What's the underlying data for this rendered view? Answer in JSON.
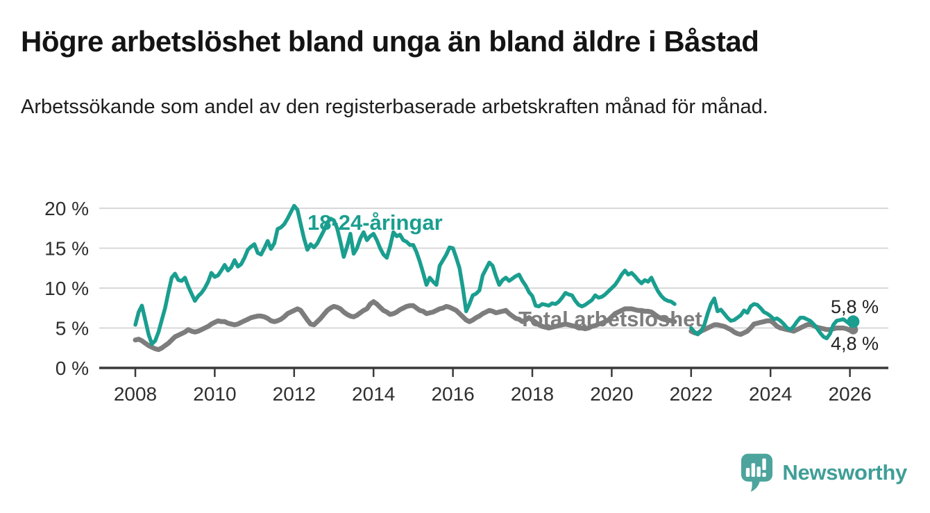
{
  "header": {
    "title": "Högre arbetslöshet bland unga än bland äldre i Båstad",
    "subtitle": "Arbetssökande som andel av den registerbaserade arbetskraften månad för månad."
  },
  "chart_data": {
    "type": "line",
    "title": "Högre arbetslöshet bland unga än bland äldre i Båstad",
    "subtitle": "Arbetssökande som andel av den registerbaserade arbetskraften månad för månad.",
    "legend_position": "inline-labels-on-chart",
    "x": {
      "unit": "month",
      "start": "2008-01",
      "end": "2026-02",
      "tick_years": [
        2008,
        2010,
        2012,
        2014,
        2016,
        2018,
        2020,
        2022,
        2024,
        2026
      ],
      "tick_labels": [
        "2008",
        "2010",
        "2012",
        "2014",
        "2016",
        "2018",
        "2020",
        "2022",
        "2024",
        "2026"
      ]
    },
    "y": {
      "unit": "percent",
      "lim": [
        0,
        21.5
      ],
      "gridlines": true,
      "tick_values": [
        0,
        5,
        10,
        15,
        20
      ],
      "tick_labels": [
        "0 %",
        "5 %",
        "10 %",
        "15 %",
        "20 %"
      ]
    },
    "data_gap": {
      "from": "2021-09",
      "to": "2021-12"
    },
    "series": [
      {
        "name": "18-24-åringar",
        "color": "#1a9e8f",
        "end_label": "5,8 %",
        "end_value": 5.8,
        "values": [
          5.4,
          7.0,
          7.8,
          6.0,
          4.2,
          3.0,
          3.4,
          4.5,
          6.0,
          7.5,
          9.5,
          11.3,
          11.8,
          11.0,
          10.9,
          11.3,
          10.2,
          9.3,
          8.4,
          9.0,
          9.4,
          10.0,
          10.8,
          11.9,
          11.4,
          11.6,
          12.2,
          12.9,
          12.2,
          12.6,
          13.5,
          12.7,
          13.0,
          13.8,
          14.8,
          15.2,
          15.5,
          14.4,
          14.2,
          15.0,
          15.9,
          14.9,
          15.6,
          17.4,
          17.6,
          18.0,
          18.7,
          19.5,
          20.3,
          19.8,
          18.0,
          16.2,
          14.8,
          15.5,
          15.1,
          15.6,
          16.4,
          17.2,
          18.2,
          18.7,
          18.5,
          17.5,
          15.8,
          13.9,
          15.2,
          16.8,
          14.3,
          15.0,
          16.2,
          17.0,
          16.0,
          16.5,
          16.8,
          16.0,
          15.0,
          14.2,
          13.8,
          15.2,
          17.0,
          16.5,
          16.7,
          16.0,
          15.8,
          15.4,
          15.4,
          14.5,
          13.3,
          11.9,
          10.4,
          11.3,
          10.8,
          10.4,
          12.8,
          13.5,
          14.2,
          15.1,
          15.0,
          13.8,
          12.5,
          10.0,
          7.1,
          8.0,
          9.1,
          9.3,
          9.7,
          11.6,
          12.4,
          13.2,
          12.8,
          11.5,
          10.4,
          11.0,
          11.3,
          10.9,
          11.2,
          11.5,
          11.7,
          10.9,
          10.3,
          9.5,
          9.0,
          7.8,
          7.7,
          8.0,
          7.9,
          7.8,
          8.1,
          8.0,
          8.3,
          8.8,
          9.4,
          9.2,
          9.1,
          8.4,
          7.9,
          7.7,
          7.9,
          8.2,
          8.5,
          9.1,
          8.8,
          8.9,
          9.2,
          9.6,
          10.0,
          10.4,
          11.0,
          11.7,
          12.2,
          11.7,
          11.9,
          11.5,
          11.0,
          10.6,
          11.0,
          10.8,
          11.3,
          10.4,
          9.6,
          9.0,
          8.6,
          8.4,
          8.3,
          8.0,
          null,
          null,
          null,
          null,
          5.0,
          4.5,
          4.2,
          4.6,
          5.4,
          6.8,
          8.0,
          8.7,
          7.1,
          7.3,
          6.8,
          6.3,
          5.9,
          6.0,
          6.3,
          6.6,
          7.2,
          6.9,
          7.7,
          8.0,
          7.9,
          7.5,
          7.0,
          6.8,
          6.5,
          6.1,
          6.2,
          5.9,
          5.5,
          5.0,
          4.8,
          5.2,
          5.8,
          6.3,
          6.3,
          6.1,
          5.9,
          5.5,
          5.0,
          4.4,
          3.9,
          3.7,
          4.3,
          5.4,
          5.9,
          6.0,
          6.1,
          5.8,
          5.5,
          5.8
        ]
      },
      {
        "name": "Total arbetslöshet",
        "color": "#7d7d7d",
        "end_label": "4,8 %",
        "end_value": 4.8,
        "values": [
          3.5,
          3.6,
          3.4,
          3.1,
          2.8,
          2.6,
          2.4,
          2.3,
          2.5,
          2.8,
          3.1,
          3.5,
          3.9,
          4.1,
          4.3,
          4.5,
          4.8,
          4.6,
          4.5,
          4.6,
          4.8,
          5.0,
          5.2,
          5.5,
          5.7,
          5.9,
          5.8,
          5.8,
          5.6,
          5.5,
          5.4,
          5.5,
          5.7,
          5.9,
          6.1,
          6.3,
          6.4,
          6.5,
          6.5,
          6.4,
          6.2,
          5.9,
          5.8,
          5.9,
          6.1,
          6.4,
          6.8,
          7.0,
          7.2,
          7.4,
          7.2,
          6.6,
          6.0,
          5.5,
          5.4,
          5.8,
          6.2,
          6.7,
          7.2,
          7.5,
          7.7,
          7.6,
          7.4,
          7.0,
          6.7,
          6.5,
          6.4,
          6.6,
          6.9,
          7.2,
          7.4,
          8.0,
          8.3,
          8.0,
          7.6,
          7.2,
          7.0,
          6.7,
          6.8,
          7.0,
          7.3,
          7.5,
          7.7,
          7.8,
          7.8,
          7.5,
          7.2,
          7.1,
          6.8,
          6.9,
          7.0,
          7.2,
          7.4,
          7.5,
          7.7,
          7.6,
          7.4,
          7.2,
          6.8,
          6.4,
          6.0,
          5.8,
          6.0,
          6.3,
          6.5,
          6.8,
          7.0,
          7.2,
          7.1,
          6.9,
          7.0,
          7.1,
          7.2,
          6.8,
          6.5,
          6.2,
          6.1,
          5.8,
          6.0,
          6.3,
          6.0,
          5.7,
          5.4,
          5.2,
          5.1,
          5.0,
          5.1,
          5.2,
          5.3,
          5.4,
          5.5,
          5.4,
          5.3,
          5.2,
          5.0,
          5.0,
          4.9,
          5.0,
          5.2,
          5.3,
          5.5,
          5.6,
          5.8,
          6.0,
          6.4,
          6.8,
          7.0,
          7.2,
          7.4,
          7.4,
          7.4,
          7.3,
          7.2,
          7.2,
          7.1,
          7.1,
          7.0,
          6.7,
          6.4,
          6.2,
          6.1,
          6.0,
          5.9,
          5.8,
          null,
          null,
          null,
          null,
          4.6,
          4.4,
          4.3,
          4.6,
          4.8,
          5.0,
          5.2,
          5.4,
          5.4,
          5.3,
          5.2,
          5.0,
          4.8,
          4.5,
          4.3,
          4.2,
          4.4,
          4.6,
          5.0,
          5.5,
          5.6,
          5.7,
          5.8,
          5.9,
          5.9,
          5.6,
          5.2,
          5.0,
          4.9,
          4.8,
          4.7,
          4.6,
          4.8,
          5.0,
          5.2,
          5.4,
          5.5,
          5.3,
          5.1,
          5.0,
          4.9,
          4.8,
          4.8,
          4.9,
          5.0,
          5.0,
          5.0,
          4.9,
          4.7,
          4.8
        ]
      }
    ],
    "colors": {
      "accent_teal": "#1a9e8f",
      "line_gray": "#7d7d7d",
      "gridline": "#d8d8d8",
      "axis": "#3a3a3a",
      "logo_teal": "#4ca49d",
      "brand_text_teal": "#3f9e97"
    }
  },
  "footer": {
    "brand": "Newsworthy"
  }
}
